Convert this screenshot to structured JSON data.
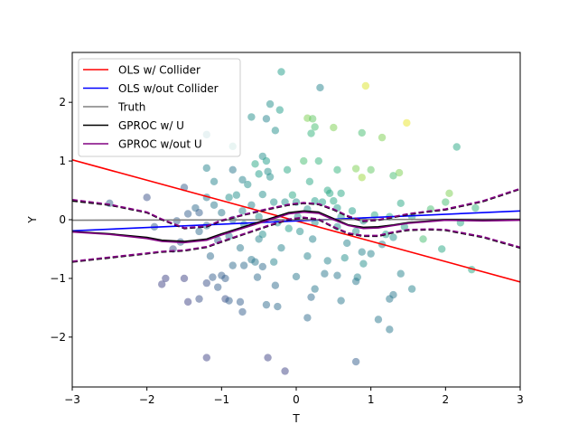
{
  "chart_data": {
    "type": "scatter",
    "xlabel": "T",
    "ylabel": "Y",
    "xlim": [
      -3,
      3
    ],
    "ylim": [
      -2.85,
      2.85
    ],
    "xticks": [
      -3,
      -2,
      -1,
      0,
      1,
      2,
      3
    ],
    "yticks": [
      -2,
      -1,
      0,
      1,
      2
    ],
    "xtick_labels": [
      "−3",
      "−2",
      "−1",
      "0",
      "1",
      "2",
      "3"
    ],
    "ytick_labels": [
      "−2",
      "−1",
      "0",
      "1",
      "2"
    ],
    "legend_position": "upper-left",
    "grid": false,
    "scatter": {
      "colormap": "viridis",
      "alpha": 0.5,
      "points": [
        [
          -0.2,
          2.52,
          0.55
        ],
        [
          0.93,
          2.28,
          0.95
        ],
        [
          0.32,
          2.25,
          0.45
        ],
        [
          1.48,
          1.65,
          0.97
        ],
        [
          -0.35,
          1.97,
          0.5
        ],
        [
          -0.22,
          1.87,
          0.55
        ],
        [
          0.15,
          1.73,
          0.8
        ],
        [
          -0.6,
          1.75,
          0.5
        ],
        [
          -0.4,
          1.72,
          0.45
        ],
        [
          0.22,
          1.72,
          0.75
        ],
        [
          0.25,
          1.58,
          0.7
        ],
        [
          0.5,
          1.57,
          0.8
        ],
        [
          -0.28,
          1.52,
          0.5
        ],
        [
          0.2,
          1.47,
          0.65
        ],
        [
          0.88,
          1.48,
          0.7
        ],
        [
          1.15,
          1.4,
          0.8
        ],
        [
          -1.2,
          1.45,
          0.45
        ],
        [
          -0.85,
          1.25,
          0.55
        ],
        [
          2.15,
          1.24,
          0.6
        ],
        [
          -0.45,
          1.08,
          0.5
        ],
        [
          -0.4,
          1.0,
          0.55
        ],
        [
          0.1,
          1.0,
          0.7
        ],
        [
          0.3,
          1.0,
          0.65
        ],
        [
          -0.55,
          0.95,
          0.6
        ],
        [
          -1.2,
          0.88,
          0.45
        ],
        [
          -0.85,
          0.85,
          0.4
        ],
        [
          -0.38,
          0.82,
          0.5
        ],
        [
          -0.12,
          0.85,
          0.6
        ],
        [
          0.55,
          0.85,
          0.65
        ],
        [
          0.8,
          0.87,
          0.8
        ],
        [
          1.0,
          0.85,
          0.75
        ],
        [
          1.38,
          0.8,
          0.8
        ],
        [
          -0.5,
          0.78,
          0.55
        ],
        [
          -0.35,
          0.73,
          0.5
        ],
        [
          -1.1,
          0.65,
          0.45
        ],
        [
          -0.72,
          0.68,
          0.45
        ],
        [
          0.88,
          0.72,
          0.85
        ],
        [
          1.3,
          0.75,
          0.7
        ],
        [
          0.18,
          0.65,
          0.6
        ],
        [
          -0.65,
          0.6,
          0.5
        ],
        [
          -1.5,
          0.55,
          0.3
        ],
        [
          0.42,
          0.5,
          0.6
        ],
        [
          0.6,
          0.45,
          0.6
        ],
        [
          -0.45,
          0.43,
          0.5
        ],
        [
          2.05,
          0.45,
          0.8
        ],
        [
          -1.2,
          0.38,
          0.4
        ],
        [
          -0.8,
          0.42,
          0.5
        ],
        [
          -0.9,
          0.38,
          0.5
        ],
        [
          -0.05,
          0.42,
          0.6
        ],
        [
          0.45,
          0.45,
          0.6
        ],
        [
          -0.3,
          0.3,
          0.5
        ],
        [
          -0.15,
          0.3,
          0.5
        ],
        [
          0.0,
          0.3,
          0.5
        ],
        [
          0.25,
          0.32,
          0.55
        ],
        [
          0.35,
          0.3,
          0.55
        ],
        [
          0.5,
          0.32,
          0.6
        ],
        [
          -2.5,
          0.28,
          0.3
        ],
        [
          -2.0,
          0.38,
          0.25
        ],
        [
          -1.35,
          0.2,
          0.35
        ],
        [
          -1.3,
          0.12,
          0.3
        ],
        [
          -1.1,
          0.25,
          0.4
        ],
        [
          -0.6,
          0.25,
          0.45
        ],
        [
          1.4,
          0.28,
          0.6
        ],
        [
          2.0,
          0.3,
          0.7
        ],
        [
          -1.45,
          0.1,
          0.3
        ],
        [
          -1.0,
          0.12,
          0.4
        ],
        [
          -0.72,
          0.15,
          0.45
        ],
        [
          0.15,
          0.18,
          0.5
        ],
        [
          0.55,
          0.2,
          0.55
        ],
        [
          0.75,
          0.15,
          0.55
        ],
        [
          1.05,
          0.08,
          0.6
        ],
        [
          1.8,
          0.18,
          0.7
        ],
        [
          2.4,
          0.2,
          0.65
        ],
        [
          -0.5,
          0.05,
          0.5
        ],
        [
          0.02,
          0.05,
          0.5
        ],
        [
          0.6,
          0.05,
          0.55
        ],
        [
          1.25,
          0.05,
          0.6
        ],
        [
          1.55,
          0.05,
          0.6
        ],
        [
          -1.6,
          -0.02,
          0.3
        ],
        [
          -0.85,
          0.0,
          0.4
        ],
        [
          -0.25,
          -0.05,
          0.5
        ],
        [
          0.25,
          -0.05,
          0.5
        ],
        [
          0.9,
          -0.02,
          0.5
        ],
        [
          2.2,
          -0.05,
          0.6
        ],
        [
          -1.9,
          -0.12,
          0.3
        ],
        [
          -1.2,
          -0.1,
          0.35
        ],
        [
          -0.7,
          -0.08,
          0.45
        ],
        [
          -0.1,
          -0.15,
          0.55
        ],
        [
          0.55,
          -0.12,
          0.5
        ],
        [
          1.45,
          -0.12,
          0.55
        ],
        [
          -1.3,
          -0.2,
          0.35
        ],
        [
          -0.45,
          -0.25,
          0.5
        ],
        [
          0.05,
          -0.2,
          0.5
        ],
        [
          0.8,
          -0.2,
          0.5
        ],
        [
          1.2,
          -0.25,
          0.55
        ],
        [
          -0.9,
          -0.28,
          0.4
        ],
        [
          -0.5,
          -0.33,
          0.45
        ],
        [
          0.22,
          -0.33,
          0.45
        ],
        [
          1.3,
          -0.3,
          0.5
        ],
        [
          1.7,
          -0.33,
          0.7
        ],
        [
          -1.55,
          -0.38,
          0.3
        ],
        [
          -1.05,
          -0.35,
          0.3
        ],
        [
          0.68,
          -0.4,
          0.45
        ],
        [
          1.15,
          -0.42,
          0.45
        ],
        [
          -1.65,
          -0.5,
          0.25
        ],
        [
          -0.75,
          -0.48,
          0.4
        ],
        [
          -0.2,
          -0.48,
          0.45
        ],
        [
          0.88,
          -0.55,
          0.45
        ],
        [
          1.95,
          -0.5,
          0.6
        ],
        [
          -1.15,
          -0.62,
          0.35
        ],
        [
          0.15,
          -0.62,
          0.45
        ],
        [
          0.65,
          -0.65,
          0.5
        ],
        [
          -0.6,
          -0.68,
          0.4
        ],
        [
          -0.55,
          -0.72,
          0.4
        ],
        [
          -0.3,
          -0.72,
          0.45
        ],
        [
          0.42,
          -0.7,
          0.45
        ],
        [
          1.0,
          -0.58,
          0.45
        ],
        [
          -0.85,
          -0.78,
          0.35
        ],
        [
          -0.7,
          -0.78,
          0.35
        ],
        [
          -0.45,
          -0.8,
          0.35
        ],
        [
          0.9,
          -0.75,
          0.5
        ],
        [
          2.35,
          -0.85,
          0.6
        ],
        [
          -1.0,
          -0.95,
          0.3
        ],
        [
          -1.75,
          -1.0,
          0.2
        ],
        [
          -1.5,
          -1.0,
          0.2
        ],
        [
          -1.12,
          -0.98,
          0.3
        ],
        [
          -0.95,
          -1.0,
          0.3
        ],
        [
          -0.52,
          -0.98,
          0.35
        ],
        [
          0.0,
          -0.97,
          0.4
        ],
        [
          0.38,
          -0.92,
          0.4
        ],
        [
          0.55,
          -0.95,
          0.4
        ],
        [
          0.82,
          -0.98,
          0.45
        ],
        [
          1.4,
          -0.92,
          0.45
        ],
        [
          -1.8,
          -1.1,
          0.2
        ],
        [
          -1.2,
          -1.08,
          0.25
        ],
        [
          -0.28,
          -1.12,
          0.35
        ],
        [
          0.8,
          -1.05,
          0.4
        ],
        [
          0.25,
          -1.18,
          0.4
        ],
        [
          -1.05,
          -1.15,
          0.3
        ],
        [
          1.55,
          -1.18,
          0.45
        ],
        [
          1.3,
          -1.28,
          0.4
        ],
        [
          -1.45,
          -1.4,
          0.2
        ],
        [
          -1.3,
          -1.35,
          0.25
        ],
        [
          -0.95,
          -1.35,
          0.25
        ],
        [
          -0.9,
          -1.38,
          0.3
        ],
        [
          -0.75,
          -1.4,
          0.3
        ],
        [
          -0.4,
          -1.45,
          0.35
        ],
        [
          0.2,
          -1.32,
          0.35
        ],
        [
          0.6,
          -1.38,
          0.4
        ],
        [
          1.25,
          -1.35,
          0.4
        ],
        [
          -0.25,
          -1.48,
          0.35
        ],
        [
          -0.72,
          -1.57,
          0.3
        ],
        [
          0.15,
          -1.67,
          0.35
        ],
        [
          1.1,
          -1.7,
          0.4
        ],
        [
          1.25,
          -1.87,
          0.4
        ],
        [
          -1.2,
          -2.35,
          0.2
        ],
        [
          -0.38,
          -2.35,
          0.2
        ],
        [
          0.8,
          -2.42,
          0.3
        ],
        [
          -0.15,
          -2.58,
          0.2
        ]
      ]
    },
    "series": [
      {
        "name": "OLS w/ Collider",
        "color": "#ff0000",
        "dash": false,
        "x": [
          -3,
          3
        ],
        "y": [
          1.02,
          -1.06
        ]
      },
      {
        "name": "OLS w/out Collider",
        "color": "#0000ff",
        "dash": false,
        "x": [
          -3,
          3
        ],
        "y": [
          -0.19,
          0.15
        ]
      },
      {
        "name": "Truth",
        "color": "#808080",
        "dash": false,
        "x": [
          -3,
          3
        ],
        "y": [
          -0.01,
          0.01
        ]
      },
      {
        "name": "GPROC w/ U",
        "color": "#000000",
        "dash": false,
        "x": [
          -3,
          -2.5,
          -2.0,
          -1.8,
          -1.5,
          -1.2,
          -1.0,
          -0.7,
          -0.4,
          -0.1,
          0.1,
          0.3,
          0.5,
          0.7,
          0.9,
          1.1,
          1.3,
          1.5,
          1.8,
          2.0,
          2.5,
          3
        ],
        "y": [
          -0.2,
          -0.24,
          -0.3,
          -0.35,
          -0.37,
          -0.33,
          -0.24,
          -0.12,
          0.0,
          0.12,
          0.15,
          0.13,
          0.02,
          -0.09,
          -0.13,
          -0.12,
          -0.09,
          -0.05,
          -0.02,
          0.0,
          -0.01,
          0.0
        ]
      },
      {
        "name": "GPROC w/ U upper",
        "color": "#000000",
        "dash": true,
        "x": [
          -3,
          -2.5,
          -2.0,
          -1.8,
          -1.5,
          -1.2,
          -1.0,
          -0.7,
          -0.4,
          -0.1,
          0.1,
          0.3,
          0.5,
          0.7,
          0.9,
          1.1,
          1.3,
          1.5,
          1.8,
          2.0,
          2.5,
          3
        ],
        "y": [
          0.32,
          0.25,
          0.12,
          0.0,
          -0.15,
          -0.12,
          -0.02,
          0.08,
          0.17,
          0.25,
          0.28,
          0.26,
          0.17,
          0.05,
          -0.03,
          -0.01,
          0.04,
          0.09,
          0.14,
          0.17,
          0.31,
          0.52
        ]
      },
      {
        "name": "GPROC w/ U lower",
        "color": "#000000",
        "dash": true,
        "x": [
          -3,
          -2.5,
          -2.0,
          -1.8,
          -1.5,
          -1.2,
          -1.0,
          -0.7,
          -0.4,
          -0.1,
          0.1,
          0.3,
          0.5,
          0.7,
          0.9,
          1.1,
          1.3,
          1.5,
          1.8,
          2.0,
          2.5,
          3
        ],
        "y": [
          -0.72,
          -0.65,
          -0.58,
          -0.55,
          -0.53,
          -0.47,
          -0.38,
          -0.25,
          -0.12,
          0.0,
          0.03,
          0.0,
          -0.13,
          -0.24,
          -0.28,
          -0.28,
          -0.22,
          -0.18,
          -0.17,
          -0.18,
          -0.3,
          -0.48
        ]
      },
      {
        "name": "GPROC w/out U",
        "color": "#800080",
        "dash": false,
        "x": [
          -3,
          -2.5,
          -2.0,
          -1.8,
          -1.5,
          -1.2,
          -1.0,
          -0.7,
          -0.4,
          -0.1,
          0.1,
          0.3,
          0.5,
          0.7,
          0.9,
          1.1,
          1.3,
          1.5,
          1.8,
          2.0,
          2.5,
          3
        ],
        "y": [
          -0.21,
          -0.25,
          -0.32,
          -0.37,
          -0.39,
          -0.35,
          -0.26,
          -0.14,
          -0.02,
          0.1,
          0.13,
          0.11,
          0.0,
          -0.1,
          -0.15,
          -0.14,
          -0.1,
          -0.06,
          -0.03,
          -0.01,
          -0.02,
          -0.01
        ]
      },
      {
        "name": "GPROC w/out U upper",
        "color": "#800080",
        "dash": true,
        "x": [
          -3,
          -2.5,
          -2.0,
          -1.8,
          -1.5,
          -1.2,
          -1.0,
          -0.7,
          -0.4,
          -0.1,
          0.1,
          0.3,
          0.5,
          0.7,
          0.9,
          1.1,
          1.3,
          1.5,
          1.8,
          2.0,
          2.5,
          3
        ],
        "y": [
          0.34,
          0.26,
          0.13,
          0.01,
          -0.14,
          -0.11,
          -0.01,
          0.09,
          0.18,
          0.26,
          0.29,
          0.27,
          0.18,
          0.06,
          -0.02,
          0.0,
          0.05,
          0.1,
          0.15,
          0.18,
          0.32,
          0.53
        ]
      },
      {
        "name": "GPROC w/out U lower",
        "color": "#800080",
        "dash": true,
        "x": [
          -3,
          -2.5,
          -2.0,
          -1.8,
          -1.5,
          -1.2,
          -1.0,
          -0.7,
          -0.4,
          -0.1,
          0.1,
          0.3,
          0.5,
          0.7,
          0.9,
          1.1,
          1.3,
          1.5,
          1.8,
          2.0,
          2.5,
          3
        ],
        "y": [
          -0.71,
          -0.64,
          -0.57,
          -0.54,
          -0.52,
          -0.46,
          -0.37,
          -0.24,
          -0.11,
          0.01,
          0.04,
          0.01,
          -0.12,
          -0.23,
          -0.27,
          -0.27,
          -0.21,
          -0.17,
          -0.16,
          -0.17,
          -0.29,
          -0.47
        ]
      }
    ],
    "legend": [
      {
        "label": "OLS w/ Collider",
        "color": "#ff0000"
      },
      {
        "label": "OLS w/out Collider",
        "color": "#0000ff"
      },
      {
        "label": "Truth",
        "color": "#808080"
      },
      {
        "label": "GPROC w/ U",
        "color": "#000000"
      },
      {
        "label": "GPROC w/out U",
        "color": "#800080"
      }
    ]
  }
}
